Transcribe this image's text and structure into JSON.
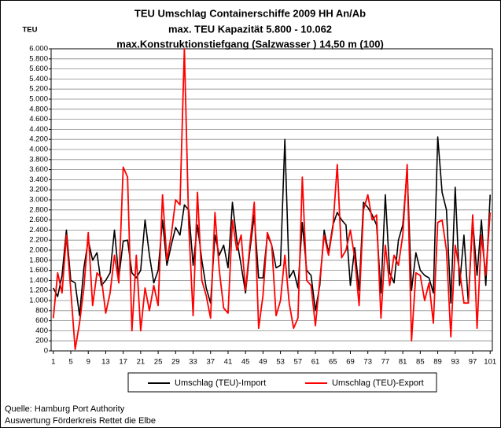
{
  "chart_data": {
    "type": "line",
    "title_lines": [
      "TEU Umschlag Containerschiffe 2009 HH An/Ab",
      "max. TEU Kapazität  5.800 - 10.062",
      "max.Konstruktionstiefgang (Salzwasser ) 14,50 m (100)"
    ],
    "ylabel": "TEU",
    "notes": [
      "Quelle: Hamburg Port Authority",
      "Auswertung Förderkreis Rettet die Elbe"
    ],
    "x": [
      1,
      2,
      3,
      4,
      5,
      6,
      7,
      8,
      9,
      10,
      11,
      12,
      13,
      14,
      15,
      16,
      17,
      18,
      19,
      20,
      21,
      22,
      23,
      24,
      25,
      26,
      27,
      28,
      29,
      30,
      31,
      32,
      33,
      34,
      35,
      36,
      37,
      38,
      39,
      40,
      41,
      42,
      43,
      44,
      45,
      46,
      47,
      48,
      49,
      50,
      51,
      52,
      53,
      54,
      55,
      56,
      57,
      58,
      59,
      60,
      61,
      62,
      63,
      64,
      65,
      66,
      67,
      68,
      69,
      70,
      71,
      72,
      73,
      74,
      75,
      76,
      77,
      78,
      79,
      80,
      81,
      82,
      83,
      84,
      85,
      86,
      87,
      88,
      89,
      90,
      91,
      92,
      93,
      94,
      95,
      96,
      97,
      98,
      99,
      100,
      101
    ],
    "xlim": [
      0.5,
      101.5
    ],
    "xticks": [
      1,
      5,
      9,
      13,
      17,
      21,
      25,
      29,
      33,
      37,
      41,
      45,
      49,
      53,
      57,
      61,
      65,
      69,
      73,
      77,
      81,
      85,
      89,
      93,
      97,
      101
    ],
    "ylim": [
      0,
      6000
    ],
    "yticks": [
      0,
      200,
      400,
      600,
      800,
      {
        "value": 1000,
        "label": "1.000"
      },
      {
        "value": 1200,
        "label": "1.200"
      },
      {
        "value": 1400,
        "label": "1.400"
      },
      {
        "value": 1600,
        "label": "1.600"
      },
      {
        "value": 1800,
        "label": "1.800"
      },
      {
        "value": 2000,
        "label": "2.000"
      },
      {
        "value": 2200,
        "label": "2.200"
      },
      {
        "value": 2400,
        "label": "2.400"
      },
      {
        "value": 2600,
        "label": "2.600"
      },
      {
        "value": 2800,
        "label": "2.800"
      },
      {
        "value": 3000,
        "label": "3.000"
      },
      {
        "value": 3200,
        "label": "3.200"
      },
      {
        "value": 3400,
        "label": "3.400"
      },
      {
        "value": 3600,
        "label": "3.600"
      },
      {
        "value": 3800,
        "label": "3.800"
      },
      {
        "value": 4000,
        "label": "4.000"
      },
      {
        "value": 4200,
        "label": "4.200"
      },
      {
        "value": 4400,
        "label": "4.400"
      },
      {
        "value": 4600,
        "label": "4.600"
      },
      {
        "value": 4800,
        "label": "4.800"
      },
      {
        "value": 5000,
        "label": "5.000"
      },
      {
        "value": 5200,
        "label": "5.200"
      },
      {
        "value": 5400,
        "label": "5.400"
      },
      {
        "value": 5600,
        "label": "5.600"
      },
      {
        "value": 5800,
        "label": "5.800"
      },
      {
        "value": 6000,
        "label": "6.000"
      }
    ],
    "grid": true,
    "series": [
      {
        "name": "Umschlag (TEU)-Import",
        "color": "#000000",
        "values": [
          1250,
          1080,
          1500,
          2400,
          1400,
          1350,
          700,
          1650,
          2200,
          1800,
          1950,
          1300,
          1400,
          1550,
          2400,
          1450,
          2180,
          2200,
          1550,
          1450,
          1600,
          2600,
          1900,
          1350,
          1600,
          2600,
          1700,
          2100,
          2450,
          2300,
          2900,
          2800,
          1700,
          2500,
          1800,
          1250,
          950,
          2300,
          1900,
          2100,
          1650,
          2950,
          2200,
          1700,
          1150,
          2000,
          2700,
          1450,
          1450,
          2300,
          2100,
          1650,
          1700,
          4200,
          1450,
          1600,
          1250,
          2550,
          1600,
          1500,
          800,
          1300,
          2400,
          1950,
          2500,
          2750,
          2600,
          2500,
          1300,
          2050,
          1200,
          2950,
          2850,
          2700,
          2500,
          1150,
          3100,
          1550,
          1350,
          2200,
          2500,
          3600,
          1200,
          1950,
          1600,
          1500,
          1450,
          1150,
          4250,
          3150,
          2800,
          950,
          3250,
          1300,
          2300,
          950,
          2600,
          1500,
          2600,
          1300,
          3100
        ]
      },
      {
        "name": "Umschlag (TEU)-Export",
        "color": "#ff0000",
        "values": [
          650,
          1550,
          1150,
          2300,
          1200,
          30,
          550,
          1250,
          2350,
          900,
          1550,
          1450,
          750,
          1150,
          1900,
          1350,
          3650,
          3450,
          400,
          1900,
          400,
          1250,
          800,
          1300,
          900,
          3100,
          1800,
          2300,
          3000,
          2900,
          6000,
          2500,
          700,
          3150,
          1400,
          1100,
          650,
          2750,
          1600,
          850,
          750,
          2600,
          2000,
          2300,
          1200,
          2100,
          2950,
          450,
          1100,
          2350,
          2100,
          700,
          1000,
          1900,
          950,
          450,
          650,
          3450,
          1400,
          1300,
          500,
          1400,
          2300,
          1900,
          2450,
          3700,
          1850,
          2000,
          2400,
          1850,
          900,
          2800,
          3100,
          2600,
          2700,
          650,
          2100,
          1300,
          1900,
          1700,
          2300,
          3700,
          200,
          1550,
          1500,
          1000,
          1350,
          550,
          2550,
          2600,
          2000,
          280,
          2100,
          1600,
          950,
          950,
          2700,
          450,
          2300,
          1500,
          2750
        ]
      }
    ]
  }
}
